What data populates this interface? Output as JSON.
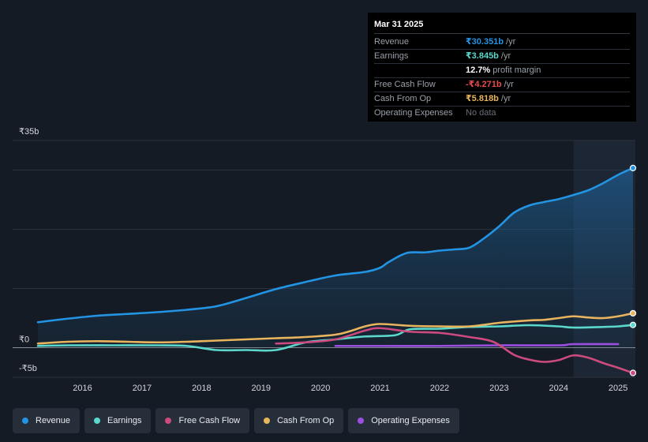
{
  "tooltip": {
    "date": "Mar 31 2025",
    "rows": [
      {
        "label": "Revenue",
        "value": "₹30.351b",
        "unit": "/yr",
        "color": "#2394e3"
      },
      {
        "label": "Earnings",
        "value": "₹3.845b",
        "unit": "/yr",
        "color": "#5ad8cb"
      },
      {
        "label": "",
        "value": "12.7%",
        "unit": "profit margin",
        "color": "#ffffff"
      },
      {
        "label": "Free Cash Flow",
        "value": "-₹4.271b",
        "unit": "/yr",
        "color": "#e84b4b"
      },
      {
        "label": "Cash From Op",
        "value": "₹5.818b",
        "unit": "/yr",
        "color": "#e8b45e"
      },
      {
        "label": "Operating Expenses",
        "value": "No data",
        "unit": "",
        "color": "#6b7079"
      }
    ]
  },
  "legend": [
    {
      "label": "Revenue",
      "color": "#2394e3"
    },
    {
      "label": "Earnings",
      "color": "#5ad8cb"
    },
    {
      "label": "Free Cash Flow",
      "color": "#cc4a7d"
    },
    {
      "label": "Cash From Op",
      "color": "#e8b45e"
    },
    {
      "label": "Operating Expenses",
      "color": "#9b4fe0"
    }
  ],
  "chart_data": {
    "type": "line",
    "title": "",
    "xlabel": "",
    "ylabel": "",
    "y_tick_labels": [
      {
        "value": 35,
        "label": "₹35b"
      },
      {
        "value": 0,
        "label": "₹0"
      },
      {
        "value": -5,
        "label": "-₹5b"
      }
    ],
    "ylim": [
      -5,
      35
    ],
    "xlim": [
      2015.25,
      2025.25
    ],
    "x_ticks": [
      "2016",
      "2017",
      "2018",
      "2019",
      "2020",
      "2021",
      "2022",
      "2023",
      "2024",
      "2025"
    ],
    "highlight_from": 2024.25,
    "series": [
      {
        "name": "Revenue",
        "color": "#2394e3",
        "fill": true,
        "x": [
          2015.25,
          2015.75,
          2016.25,
          2016.75,
          2017.25,
          2017.75,
          2018.25,
          2018.75,
          2019.25,
          2019.75,
          2020.25,
          2020.75,
          2021.0,
          2021.15,
          2021.45,
          2021.75,
          2022.0,
          2022.25,
          2022.5,
          2022.75,
          2023.0,
          2023.25,
          2023.5,
          2023.75,
          2024.0,
          2024.25,
          2024.5,
          2024.75,
          2025.0,
          2025.25
        ],
        "y": [
          4.3,
          4.9,
          5.4,
          5.7,
          6.0,
          6.4,
          7.0,
          8.4,
          9.9,
          11.1,
          12.2,
          12.8,
          13.5,
          14.5,
          16.0,
          16.1,
          16.4,
          16.6,
          16.9,
          18.5,
          20.5,
          22.8,
          24.0,
          24.6,
          25.1,
          25.8,
          26.6,
          27.8,
          29.2,
          30.351
        ]
      },
      {
        "name": "Earnings",
        "color": "#5ad8cb",
        "fill": false,
        "x": [
          2015.25,
          2015.75,
          2016.5,
          2017.25,
          2017.75,
          2018.25,
          2018.75,
          2019.25,
          2019.75,
          2020.25,
          2020.75,
          2021.25,
          2021.5,
          2022.0,
          2022.5,
          2023.0,
          2023.5,
          2024.0,
          2024.25,
          2024.75,
          2025.0,
          2025.25
        ],
        "y": [
          0.3,
          0.4,
          0.4,
          0.4,
          0.3,
          -0.4,
          -0.4,
          -0.4,
          0.9,
          1.4,
          1.9,
          2.1,
          3.1,
          3.2,
          3.5,
          3.6,
          3.8,
          3.6,
          3.4,
          3.5,
          3.6,
          3.845
        ]
      },
      {
        "name": "Free Cash Flow",
        "color": "#cc4a7d",
        "fill": false,
        "x": [
          2019.25,
          2019.75,
          2020.25,
          2020.75,
          2021.0,
          2021.5,
          2022.0,
          2022.5,
          2022.9,
          2023.25,
          2023.5,
          2023.75,
          2024.0,
          2024.25,
          2024.5,
          2024.75,
          2025.0,
          2025.25
        ],
        "y": [
          0.7,
          0.9,
          1.4,
          2.9,
          3.3,
          2.7,
          2.5,
          1.8,
          1.0,
          -1.2,
          -2.0,
          -2.4,
          -2.1,
          -1.3,
          -1.7,
          -2.6,
          -3.4,
          -4.271
        ]
      },
      {
        "name": "Cash From Op",
        "color": "#e8b45e",
        "fill": false,
        "x": [
          2015.25,
          2015.75,
          2016.25,
          2016.75,
          2017.25,
          2017.75,
          2018.25,
          2018.75,
          2019.25,
          2019.75,
          2020.25,
          2020.5,
          2020.75,
          2021.0,
          2021.5,
          2022.0,
          2022.5,
          2023.0,
          2023.5,
          2023.75,
          2024.0,
          2024.25,
          2024.5,
          2024.75,
          2025.0,
          2025.25
        ],
        "y": [
          0.7,
          1.0,
          1.1,
          1.0,
          0.9,
          1.0,
          1.2,
          1.4,
          1.6,
          1.8,
          2.2,
          2.8,
          3.6,
          4.0,
          3.7,
          3.6,
          3.6,
          4.2,
          4.6,
          4.7,
          5.0,
          5.3,
          5.1,
          5.0,
          5.3,
          5.818
        ]
      },
      {
        "name": "Operating Expenses",
        "color": "#9b4fe0",
        "fill": false,
        "x": [
          2020.25,
          2021.0,
          2022.0,
          2023.0,
          2024.0,
          2024.25,
          2025.0
        ],
        "y": [
          0.3,
          0.3,
          0.3,
          0.4,
          0.4,
          0.6,
          0.6
        ]
      }
    ]
  }
}
